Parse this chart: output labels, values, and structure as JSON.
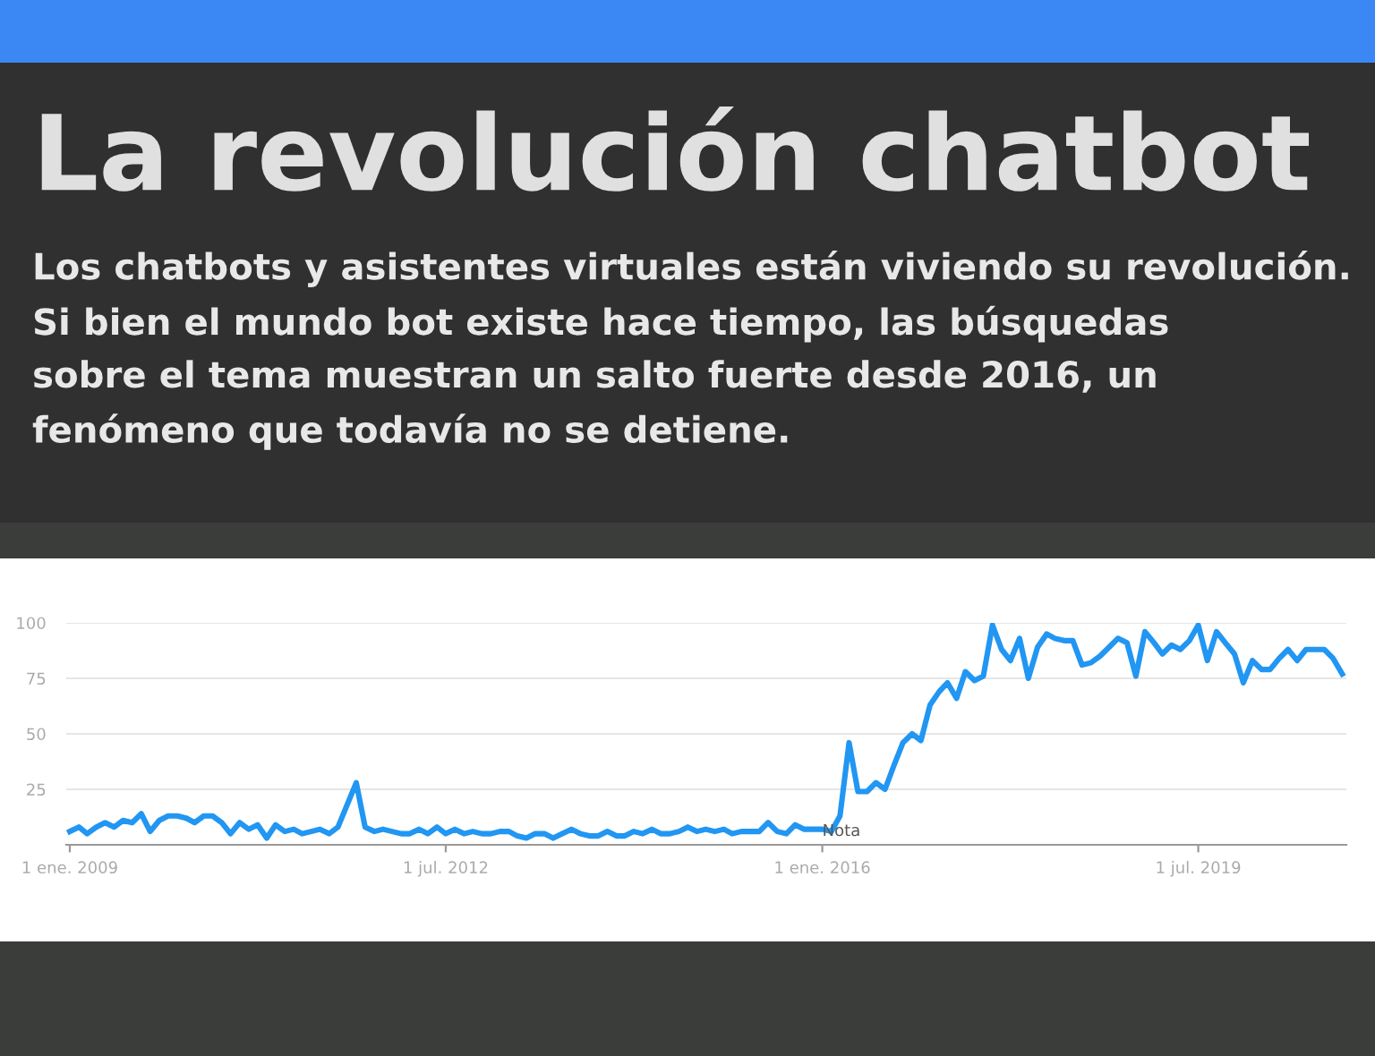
{
  "chart_data": {
    "type": "line",
    "title": "La revolución chatbot",
    "subtitle": "Los chatbots y asistentes virtuales están viviendo su revolución.\nSi bien el mundo bot existe hace tiempo, las búsquedas\nsobre el tema muestran un salto fuerte desde 2016, un\nfenómeno que todavía no se detiene.",
    "x": [
      "2009-01",
      "2009-02",
      "2009-03",
      "2009-04",
      "2009-05",
      "2009-06",
      "2009-07",
      "2009-08",
      "2009-09",
      "2009-10",
      "2009-11",
      "2009-12",
      "2010-01",
      "2010-02",
      "2010-03",
      "2010-04",
      "2010-05",
      "2010-06",
      "2010-07",
      "2010-08",
      "2010-09",
      "2010-10",
      "2010-11",
      "2010-12",
      "2011-01",
      "2011-02",
      "2011-03",
      "2011-04",
      "2011-05",
      "2011-06",
      "2011-07",
      "2011-08",
      "2011-09",
      "2011-10",
      "2011-11",
      "2011-12",
      "2012-01",
      "2012-02",
      "2012-03",
      "2012-04",
      "2012-05",
      "2012-06",
      "2012-07",
      "2012-08",
      "2012-09",
      "2012-10",
      "2012-11",
      "2012-12",
      "2013-01",
      "2013-02",
      "2013-03",
      "2013-04",
      "2013-05",
      "2013-06",
      "2013-07",
      "2013-08",
      "2013-09",
      "2013-10",
      "2013-11",
      "2013-12",
      "2014-01",
      "2014-02",
      "2014-03",
      "2014-04",
      "2014-05",
      "2014-06",
      "2014-07",
      "2014-08",
      "2014-09",
      "2014-10",
      "2014-11",
      "2014-12",
      "2015-01",
      "2015-02",
      "2015-03",
      "2015-04",
      "2015-05",
      "2015-06",
      "2015-07",
      "2015-08",
      "2015-09",
      "2015-10",
      "2015-11",
      "2015-12",
      "2016-01",
      "2016-02",
      "2016-03",
      "2016-04",
      "2016-05",
      "2016-06",
      "2016-07",
      "2016-08",
      "2016-09",
      "2016-10",
      "2016-11",
      "2016-12",
      "2017-01",
      "2017-02",
      "2017-03",
      "2017-04",
      "2017-05",
      "2017-06",
      "2017-07",
      "2017-08",
      "2017-09",
      "2017-10",
      "2017-11",
      "2017-12",
      "2018-01",
      "2018-02",
      "2018-03",
      "2018-04",
      "2018-05",
      "2018-06",
      "2018-07",
      "2018-08",
      "2018-09",
      "2018-10",
      "2018-11",
      "2018-12",
      "2019-01",
      "2019-02",
      "2019-03",
      "2019-04",
      "2019-05",
      "2019-06",
      "2019-07",
      "2019-08",
      "2019-09",
      "2019-10",
      "2019-11",
      "2019-12",
      "2020-01",
      "2020-02",
      "2020-03",
      "2020-04",
      "2020-05",
      "2020-06",
      "2020-07",
      "2020-08",
      "2020-09",
      "2020-10",
      "2020-11"
    ],
    "series": [
      {
        "color": "#2196f3",
        "values": [
          6,
          8,
          5,
          8,
          10,
          8,
          11,
          10,
          14,
          6,
          11,
          13,
          13,
          12,
          10,
          13,
          13,
          10,
          5,
          10,
          7,
          9,
          3,
          9,
          6,
          7,
          5,
          6,
          7,
          5,
          8,
          18,
          28,
          8,
          6,
          7,
          6,
          5,
          5,
          7,
          5,
          8,
          5,
          7,
          5,
          6,
          5,
          5,
          6,
          6,
          4,
          3,
          5,
          5,
          3,
          5,
          7,
          5,
          4,
          4,
          6,
          4,
          4,
          6,
          5,
          7,
          5,
          5,
          6,
          8,
          6,
          7,
          6,
          7,
          5,
          6,
          6,
          6,
          10,
          6,
          5,
          9,
          7,
          7,
          7,
          6,
          13,
          46,
          24,
          24,
          28,
          25,
          36,
          46,
          50,
          47,
          63,
          69,
          73,
          66,
          78,
          74,
          76,
          99,
          88,
          83,
          93,
          75,
          89,
          95,
          93,
          92,
          92,
          81,
          82,
          85,
          89,
          93,
          91,
          76,
          96,
          91,
          86,
          90,
          88,
          92,
          99,
          83,
          96,
          91,
          86,
          73,
          83,
          79,
          79,
          84,
          88,
          83,
          88,
          88,
          88,
          84,
          77
        ]
      }
    ],
    "xlim": [
      "2008-12-20",
      "2020-11-15"
    ],
    "xticks": [
      {
        "value": "2009-01-01",
        "label": "1 ene. 2009"
      },
      {
        "value": "2012-07-01",
        "label": "1 jul. 2012"
      },
      {
        "value": "2016-01-01",
        "label": "1 ene. 2016"
      },
      {
        "value": "2019-07-01",
        "label": "1 jul. 2019"
      }
    ],
    "ylim": [
      0,
      100
    ],
    "yticks": [
      25,
      50,
      75,
      100
    ],
    "grid": "y",
    "line_style": "solid",
    "marker": "none",
    "annotations": [
      {
        "text": "Nota",
        "x": "2016-01",
        "y": 6
      }
    ]
  }
}
